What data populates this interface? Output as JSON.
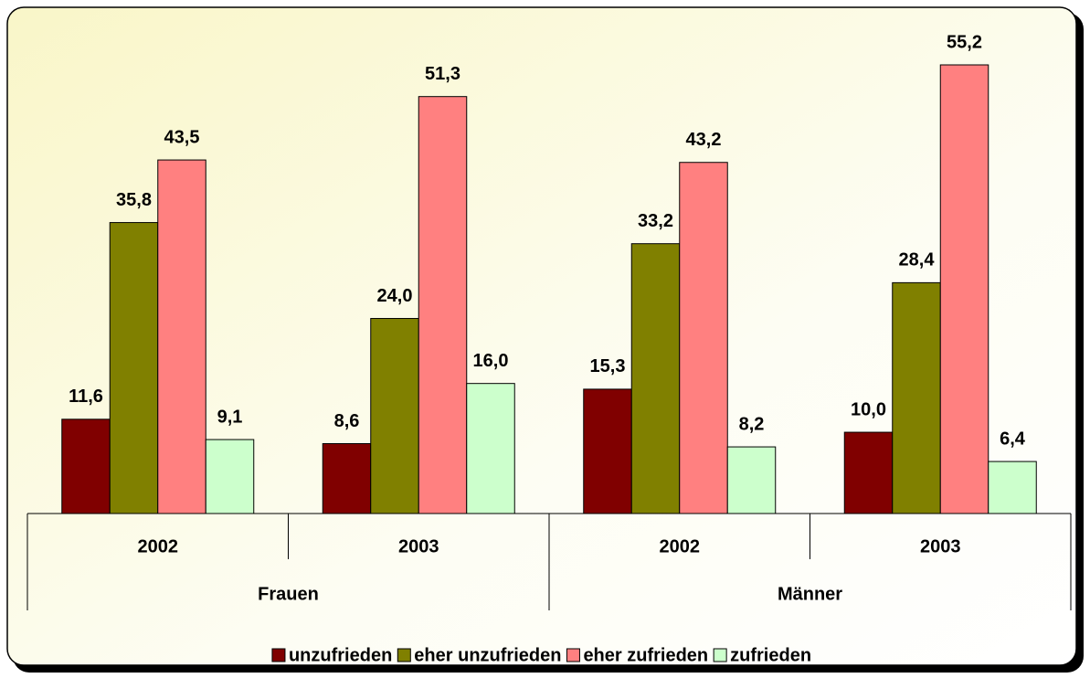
{
  "chart_data": {
    "type": "bar",
    "categories": [
      "2002",
      "2003",
      "2002",
      "2003"
    ],
    "category_groups": [
      "Frauen",
      "Männer"
    ],
    "series": [
      {
        "name": "unzufrieden",
        "color": "#800000",
        "values": [
          11.6,
          8.6,
          15.3,
          10.0
        ],
        "value_labels": [
          "11,6",
          "8,6",
          "15,3",
          "10,0"
        ]
      },
      {
        "name": "eher unzufrieden",
        "color": "#808000",
        "values": [
          35.8,
          24.0,
          33.2,
          28.4
        ],
        "value_labels": [
          "35,8",
          "24,0",
          "33,2",
          "28,4"
        ]
      },
      {
        "name": "eher zufrieden",
        "color": "#ff8080",
        "values": [
          43.5,
          51.3,
          43.2,
          55.2
        ],
        "value_labels": [
          "43,5",
          "51,3",
          "43,2",
          "55,2"
        ]
      },
      {
        "name": "zufrieden",
        "color": "#ccffcc",
        "values": [
          9.1,
          16.0,
          8.2,
          6.4
        ],
        "value_labels": [
          "9,1",
          "16,0",
          "8,2",
          "6,4"
        ]
      }
    ],
    "legend": "bottom"
  }
}
